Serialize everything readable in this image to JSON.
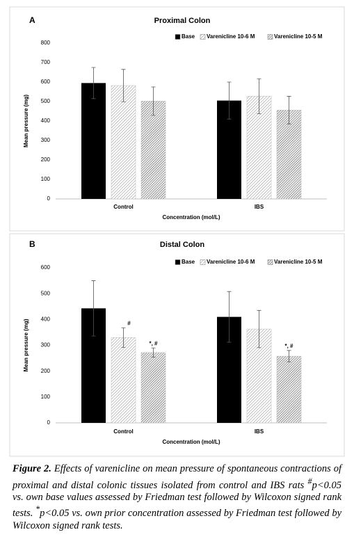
{
  "chart_data": [
    {
      "type": "bar",
      "panel": "A",
      "title": "Proximal Colon",
      "ylabel": "Mean pressure (mg)",
      "xlabel": "Concentration (mol/L)",
      "categories": [
        "Control",
        "IBS"
      ],
      "series": [
        {
          "name": "Base",
          "color": "#000000",
          "pattern": "solid",
          "values": [
            595,
            505
          ],
          "errors": [
            80,
            95
          ]
        },
        {
          "name": "Varenicline 10-6 M",
          "color": "#8c8c8c",
          "pattern": "diagonal",
          "values": [
            582,
            527
          ],
          "errors": [
            83,
            90
          ]
        },
        {
          "name": "Varenicline 10-5 M",
          "color": "#555555",
          "pattern": "crosshatch",
          "values": [
            502,
            456
          ],
          "errors": [
            73,
            71
          ]
        }
      ],
      "ylim": [
        0,
        800
      ],
      "yticks": [
        0,
        100,
        200,
        300,
        400,
        500,
        600,
        700,
        800
      ],
      "grid": false,
      "legend": "top-right"
    },
    {
      "type": "bar",
      "panel": "B",
      "title": "Distal Colon",
      "ylabel": "Mean pressure (mg)",
      "xlabel": "Concentration (mol/L)",
      "categories": [
        "Control",
        "IBS"
      ],
      "series": [
        {
          "name": "Base",
          "color": "#000000",
          "pattern": "solid",
          "values": [
            443,
            410
          ],
          "errors": [
            107,
            98
          ],
          "annotations": [
            null,
            null
          ]
        },
        {
          "name": "Varenicline 10-6 M",
          "color": "#8c8c8c",
          "pattern": "diagonal",
          "values": [
            330,
            363
          ],
          "errors": [
            38,
            72
          ],
          "annotations": [
            "#",
            null
          ]
        },
        {
          "name": "Varenicline 10-5 M",
          "color": "#555555",
          "pattern": "crosshatch",
          "values": [
            272,
            258
          ],
          "errors": [
            18,
            22
          ],
          "annotations": [
            "*, #",
            "*, #"
          ]
        }
      ],
      "ylim": [
        0,
        600
      ],
      "yticks": [
        0,
        100,
        200,
        300,
        400,
        500,
        600
      ],
      "grid": false,
      "legend": "top-right"
    }
  ],
  "caption": {
    "label": "Figure 2.",
    "text1": "Effects of varenicline on mean pressure of spontaneous contractions of proximal and distal colonic tissues isolated from control and IBS rats ",
    "sup1": "#",
    "text2": "p<0.05 vs. own base values assessed by Friedman test followed by Wilcoxon signed rank tests. ",
    "sup2": "*",
    "text3": "p<0.05 vs. own prior concentration assessed by Friedman test followed by Wilcoxon signed rank tests."
  }
}
